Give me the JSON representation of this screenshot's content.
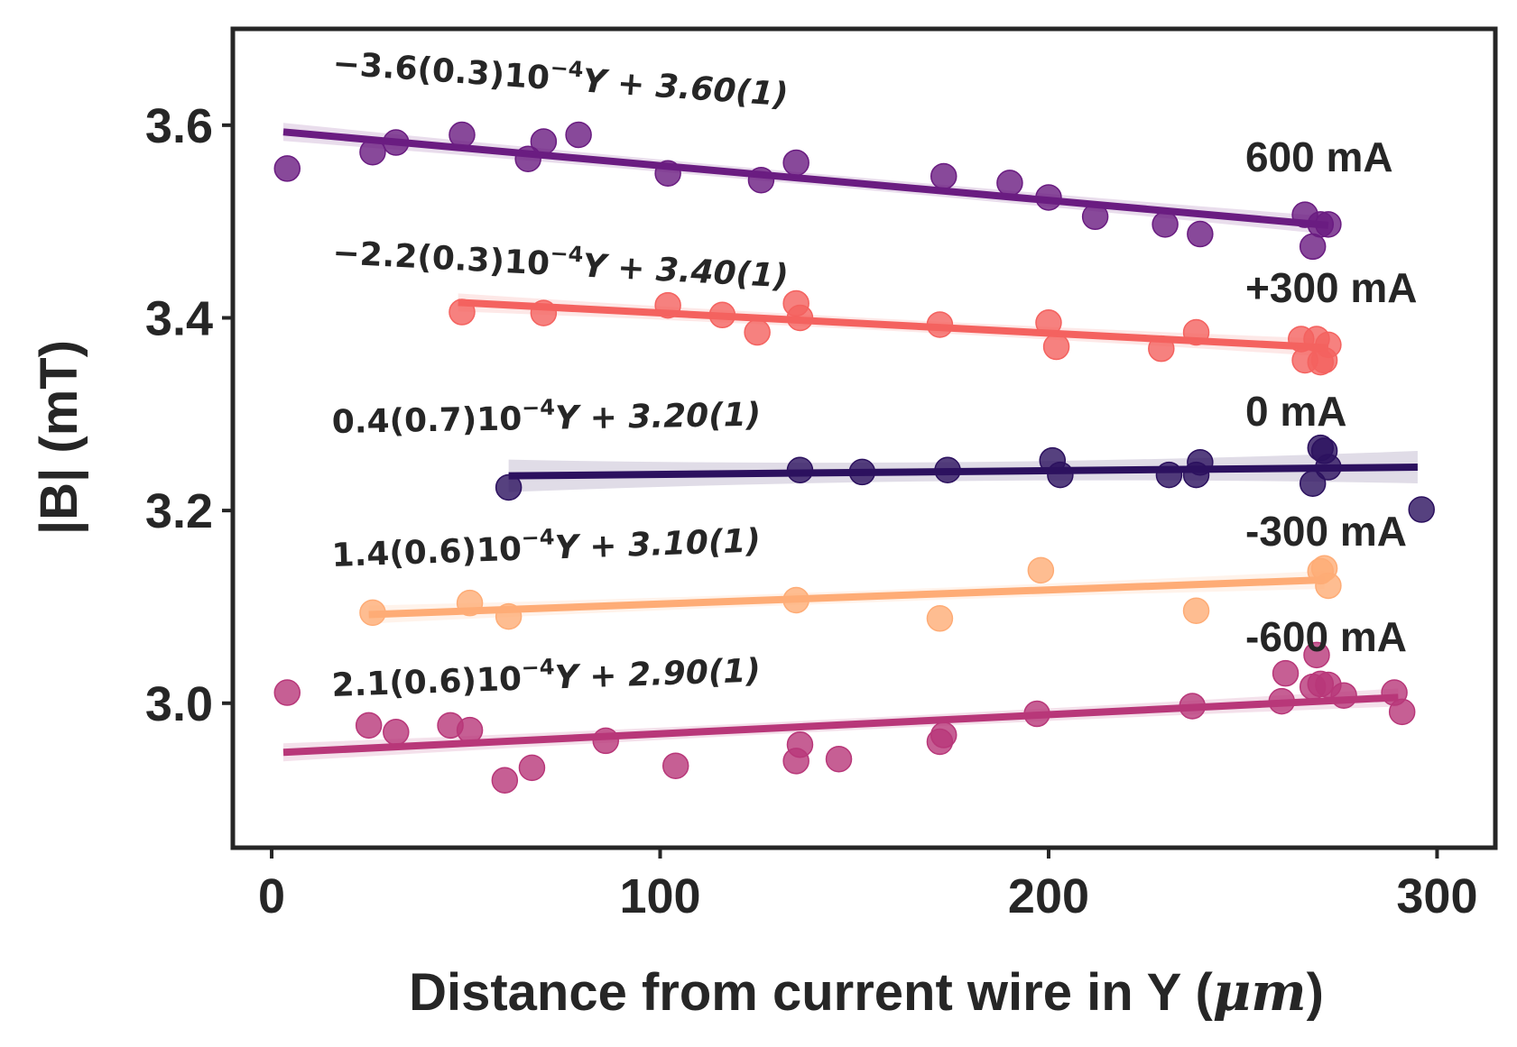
{
  "chart_data": {
    "type": "scatter",
    "title": "",
    "xlabel_prefix": "Distance from current wire in Y (",
    "xlabel_unit": "μm",
    "xlabel_suffix": ")",
    "ylabel": "|B| (mT)",
    "xlim": [
      -10,
      315
    ],
    "ylim": [
      2.85,
      3.7
    ],
    "xticks": [
      0,
      100,
      200,
      300
    ],
    "xtick_labels": [
      "0",
      "100",
      "200",
      "300"
    ],
    "yticks": [
      3.0,
      3.2,
      3.4,
      3.6
    ],
    "ytick_labels": [
      "3.0",
      "3.2",
      "3.4",
      "3.6"
    ],
    "grid": false,
    "series": [
      {
        "name": "600 mA",
        "color": "#6a1c81",
        "fit": {
          "x": [
            3,
            272
          ],
          "y": [
            3.593,
            3.496
          ]
        },
        "equation": {
          "main": "−3.6(0.3)10",
          "sup": "−4",
          "rest": "Y + 3.60(1)"
        },
        "x": [
          4,
          26,
          32,
          49,
          66,
          70,
          79,
          102,
          126,
          135,
          173,
          190,
          200,
          212,
          230,
          239,
          266,
          268,
          270,
          272
        ],
        "y": [
          3.555,
          3.572,
          3.582,
          3.59,
          3.565,
          3.583,
          3.59,
          3.55,
          3.543,
          3.561,
          3.547,
          3.54,
          3.525,
          3.505,
          3.497,
          3.487,
          3.507,
          3.474,
          3.497,
          3.497
        ]
      },
      {
        "name": "+300 mA",
        "color": "#f4625f",
        "fit": {
          "x": [
            48,
            272
          ],
          "y": [
            3.416,
            3.369
          ]
        },
        "equation": {
          "main": "−2.2(0.3)10",
          "sup": "−4",
          "rest": "Y + 3.40(1)"
        },
        "x": [
          49,
          70,
          102,
          116,
          125,
          135,
          136,
          172,
          200,
          202,
          229,
          238,
          265,
          266,
          269,
          270,
          271,
          272
        ],
        "y": [
          3.406,
          3.405,
          3.413,
          3.403,
          3.385,
          3.415,
          3.4,
          3.393,
          3.395,
          3.37,
          3.368,
          3.385,
          3.378,
          3.356,
          3.378,
          3.354,
          3.356,
          3.372
        ]
      },
      {
        "name": "0 mA",
        "color": "#2c115f",
        "fit": {
          "x": [
            61,
            295
          ],
          "y": [
            3.236,
            3.245
          ]
        },
        "equation": {
          "main": "0.4(0.7)10",
          "sup": "−4",
          "rest": "Y + 3.20(1)"
        },
        "x": [
          61,
          136,
          152,
          174,
          201,
          203,
          231,
          238,
          239,
          268,
          270,
          271,
          272,
          296
        ],
        "y": [
          3.224,
          3.242,
          3.24,
          3.242,
          3.252,
          3.237,
          3.237,
          3.237,
          3.25,
          3.228,
          3.265,
          3.262,
          3.245,
          3.201
        ]
      },
      {
        "name": "-300 mA",
        "color": "#feac76",
        "fit": {
          "x": [
            25,
            271
          ],
          "y": [
            3.092,
            3.128
          ]
        },
        "equation": {
          "main": "1.4(0.6)10",
          "sup": "−4",
          "rest": "Y + 3.10(1)"
        },
        "x": [
          26,
          51,
          61,
          135,
          172,
          198,
          238,
          270,
          271,
          272
        ],
        "y": [
          3.094,
          3.104,
          3.09,
          3.107,
          3.088,
          3.138,
          3.096,
          3.137,
          3.14,
          3.122
        ]
      },
      {
        "name": "-600 mA",
        "color": "#b83779",
        "fit": {
          "x": [
            3,
            290
          ],
          "y": [
            2.949,
            3.006
          ]
        },
        "equation": {
          "main": "2.1(0.6)10",
          "sup": "−4",
          "rest": "Y + 2.90(1)"
        },
        "x": [
          4,
          25,
          32,
          46,
          51,
          60,
          67,
          86,
          104,
          135,
          136,
          146,
          172,
          173,
          197,
          237,
          260,
          261,
          268,
          269,
          270,
          272,
          276,
          289,
          291
        ],
        "y": [
          3.011,
          2.977,
          2.97,
          2.977,
          2.972,
          2.92,
          2.933,
          2.961,
          2.935,
          2.94,
          2.957,
          2.942,
          2.96,
          2.967,
          2.989,
          2.997,
          3.002,
          3.031,
          3.017,
          3.05,
          3.02,
          3.019,
          3.008,
          3.011,
          2.991
        ]
      }
    ]
  }
}
